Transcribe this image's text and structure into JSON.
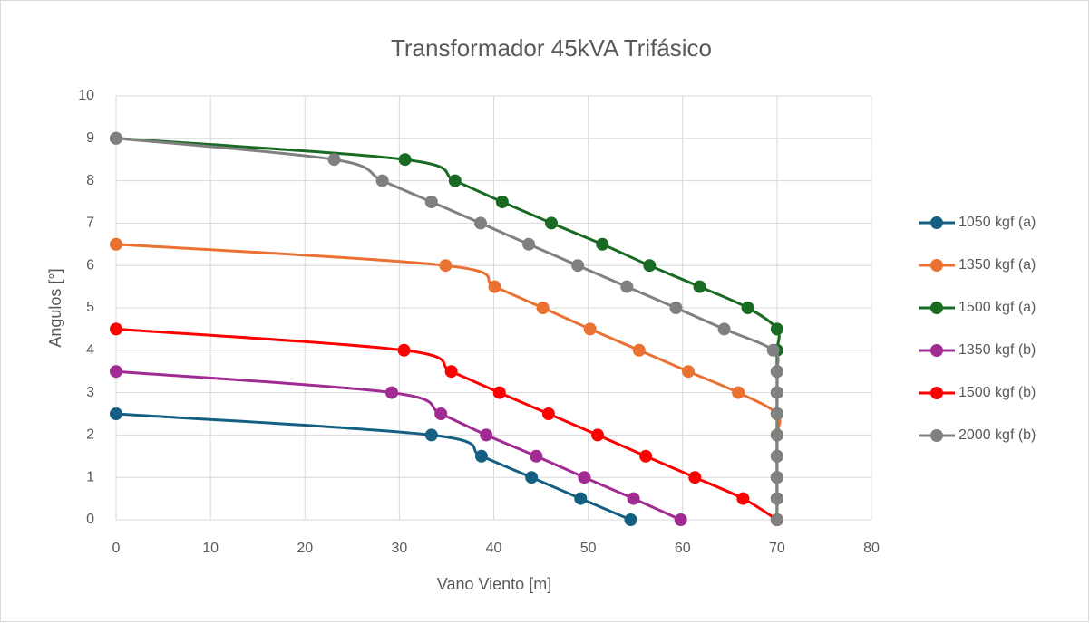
{
  "chart_data": {
    "type": "scatter",
    "title": "Transformador 45kVA Trifásico",
    "x_label": "Vano Viento [m]",
    "y_label": "Angulos [°]",
    "xlim": [
      0,
      80
    ],
    "xticks": [
      0,
      10,
      20,
      30,
      40,
      50,
      60,
      70,
      80
    ],
    "ylim": [
      0,
      10
    ],
    "yticks": [
      0,
      1,
      2,
      3,
      4,
      5,
      6,
      7,
      8,
      9,
      10
    ],
    "grid": true,
    "smooth": true,
    "legend": "right",
    "series": [
      {
        "name": "1050 kgf (a)",
        "color": "#156082",
        "x": [
          0,
          33.4,
          38.7,
          44.0,
          49.2,
          54.5
        ],
        "values": [
          2.5,
          2,
          1.5,
          1,
          0.5,
          0
        ]
      },
      {
        "name": "1350 kgf (a)",
        "color": "#e97132",
        "x": [
          0,
          34.9,
          40.1,
          45.2,
          50.2,
          55.4,
          60.6,
          65.9,
          70,
          70,
          70,
          70,
          70,
          70
        ],
        "values": [
          6.5,
          6,
          5.5,
          5,
          4.5,
          4,
          3.5,
          3,
          2.5,
          2,
          1.5,
          1,
          0.5,
          0
        ]
      },
      {
        "name": "1500 kgf (a)",
        "color": "#196b24",
        "x": [
          0,
          30.6,
          35.9,
          40.9,
          46.1,
          51.5,
          56.5,
          61.8,
          66.9,
          70,
          70,
          70,
          70,
          70,
          70,
          70,
          70,
          70,
          70
        ],
        "values": [
          9,
          8.5,
          8,
          7.5,
          7,
          6.5,
          6,
          5.5,
          5,
          4.5,
          4,
          3.5,
          3,
          2.5,
          2,
          1.5,
          1,
          0.5,
          0
        ]
      },
      {
        "name": "1350 kgf (b)",
        "color": "#a02b93",
        "x": [
          0,
          29.2,
          34.4,
          39.2,
          44.5,
          49.6,
          54.8,
          59.8
        ],
        "values": [
          3.5,
          3,
          2.5,
          2,
          1.5,
          1,
          0.5,
          0
        ]
      },
      {
        "name": "1500 kgf (b)",
        "color": "#ff0000",
        "x": [
          0,
          30.5,
          35.5,
          40.6,
          45.8,
          51.0,
          56.1,
          61.3,
          66.4,
          70
        ],
        "values": [
          4.5,
          4,
          3.5,
          3,
          2.5,
          2,
          1.5,
          1,
          0.5,
          0
        ]
      },
      {
        "name": "2000 kgf (b)",
        "color": "#808080",
        "x": [
          0,
          23.1,
          28.2,
          33.4,
          38.6,
          43.7,
          48.9,
          54.1,
          59.3,
          64.4,
          69.6,
          70,
          70,
          70,
          70,
          70,
          70,
          70,
          70
        ],
        "values": [
          9,
          8.5,
          8,
          7.5,
          7,
          6.5,
          6,
          5.5,
          5,
          4.5,
          4,
          3.5,
          3,
          2.5,
          2,
          1.5,
          1,
          0.5,
          0
        ]
      }
    ]
  }
}
